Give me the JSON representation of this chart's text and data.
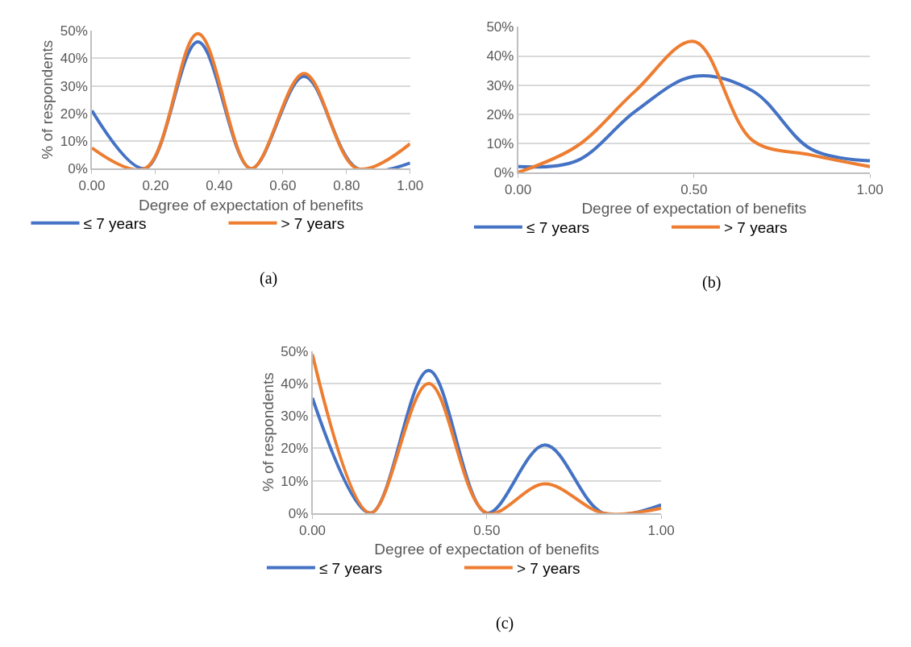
{
  "chart_data": [
    {
      "type": "line",
      "xlabel": "Degree of expectation of benefits",
      "ylabel": "% of respondents",
      "x": [
        0,
        0.1667,
        0.3333,
        0.5,
        0.6667,
        0.8333,
        1
      ],
      "series": [
        {
          "name": "≤ 7 years",
          "color": "#4472c4",
          "values": [
            21,
            0,
            46,
            0,
            33.5,
            0,
            2
          ]
        },
        {
          "name": "> 7 years",
          "color": "#ed7d31",
          "values": [
            7.5,
            0,
            49,
            0,
            34.5,
            0,
            9
          ]
        }
      ],
      "xlim": [
        0,
        1
      ],
      "xticks": [
        {
          "value": 0,
          "label": "0.00"
        },
        {
          "value": 0.2,
          "label": "0.20"
        },
        {
          "value": 0.4,
          "label": "0.40"
        },
        {
          "value": 0.6,
          "label": "0.60"
        },
        {
          "value": 0.8,
          "label": "0.80"
        },
        {
          "value": 1,
          "label": "1.00"
        }
      ],
      "ylim": [
        0,
        50
      ],
      "yticks": [
        {
          "value": 0,
          "label": "0%"
        },
        {
          "value": 10,
          "label": "10%"
        },
        {
          "value": 20,
          "label": "20%"
        },
        {
          "value": 30,
          "label": "30%"
        },
        {
          "value": 40,
          "label": "40%"
        },
        {
          "value": 50,
          "label": "50%"
        }
      ],
      "grid": "y",
      "legend": "bottom",
      "marker": "none",
      "line_style": "solid",
      "annotations": [
        "(a)"
      ]
    },
    {
      "type": "line",
      "xlabel": "Degree of expectation of benefits",
      "x": [
        0,
        0.1667,
        0.3333,
        0.5,
        0.6667,
        0.8333,
        1
      ],
      "series": [
        {
          "name": "≤ 7 years",
          "color": "#4472c4",
          "values": [
            2,
            4,
            21,
            33,
            28,
            8,
            4
          ]
        },
        {
          "name": "> 7 years",
          "color": "#ed7d31",
          "values": [
            0,
            9,
            28,
            45,
            11,
            6,
            2
          ]
        }
      ],
      "xlim": [
        0,
        1
      ],
      "xticks": [
        {
          "value": 0,
          "label": "0.00"
        },
        {
          "value": 0.5,
          "label": "0.50"
        },
        {
          "value": 1,
          "label": "1.00"
        }
      ],
      "ylim": [
        0,
        50
      ],
      "yticks": [
        {
          "value": 0,
          "label": "0%"
        },
        {
          "value": 10,
          "label": "10%"
        },
        {
          "value": 20,
          "label": "20%"
        },
        {
          "value": 30,
          "label": "30%"
        },
        {
          "value": 40,
          "label": "40%"
        },
        {
          "value": 50,
          "label": "50%"
        }
      ],
      "grid": "y",
      "legend": "bottom",
      "marker": "none",
      "line_style": "solid",
      "annotations": [
        "(b)"
      ]
    },
    {
      "type": "line",
      "xlabel": "Degree of expectation of benefits",
      "ylabel": "% of respondents",
      "x": [
        0,
        0.1667,
        0.3333,
        0.5,
        0.6667,
        0.8333,
        1
      ],
      "series": [
        {
          "name": "≤ 7 years",
          "color": "#4472c4",
          "values": [
            35.5,
            0,
            44,
            0,
            21,
            0,
            2.5
          ]
        },
        {
          "name": "> 7 years",
          "color": "#ed7d31",
          "values": [
            49,
            0,
            40,
            0,
            9,
            0,
            1.5
          ]
        }
      ],
      "xlim": [
        0,
        1
      ],
      "xticks": [
        {
          "value": 0,
          "label": "0.00"
        },
        {
          "value": 0.5,
          "label": "0.50"
        },
        {
          "value": 1,
          "label": "1.00"
        }
      ],
      "ylim": [
        0,
        50
      ],
      "yticks": [
        {
          "value": 0,
          "label": "0%"
        },
        {
          "value": 10,
          "label": "10%"
        },
        {
          "value": 20,
          "label": "20%"
        },
        {
          "value": 30,
          "label": "30%"
        },
        {
          "value": 40,
          "label": "40%"
        },
        {
          "value": 50,
          "label": "50%"
        }
      ],
      "grid": "y",
      "legend": "bottom",
      "marker": "none",
      "line_style": "solid",
      "annotations": [
        "(c)"
      ]
    }
  ]
}
